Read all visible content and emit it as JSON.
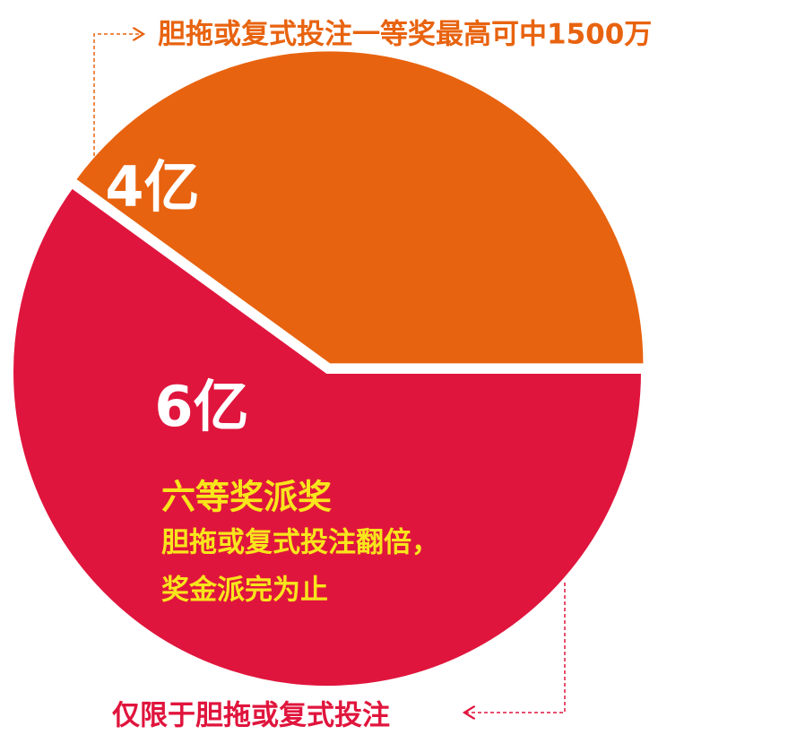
{
  "chart_data": {
    "type": "pie",
    "values": [
      4,
      6
    ],
    "value_labels": [
      "4亿",
      "6亿"
    ],
    "colors": [
      "#e8630f",
      "#e0153d"
    ],
    "annotations": {
      "top": "胆拖或复式投注一等奖最高可中1500万",
      "inner": [
        "六等奖派奖",
        "胆拖或复式投注翻倍，",
        "奖金派完为止"
      ],
      "bottom": "仅限于胆拖或复式投注"
    }
  }
}
